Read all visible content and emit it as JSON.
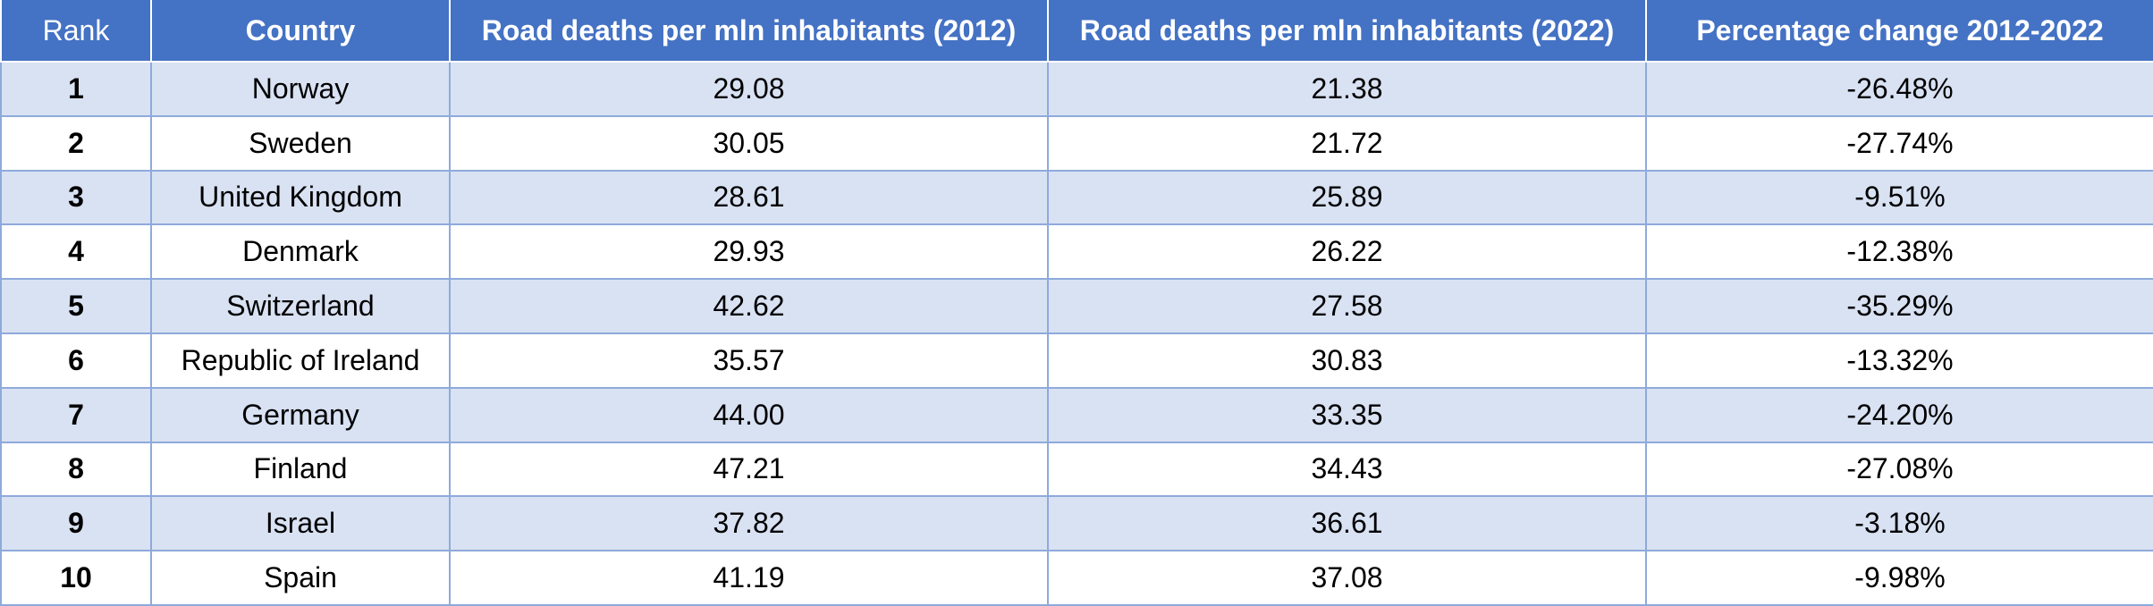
{
  "chart_data": {
    "type": "table",
    "title": "",
    "columns": [
      "Rank",
      "Country",
      "Road deaths per mln inhabitants (2012)",
      "Road deaths per mln inhabitants (2022)",
      "Percentage change 2012-2022"
    ],
    "rows": [
      {
        "rank": "1",
        "country": "Norway",
        "v2012": "29.08",
        "v2022": "21.38",
        "pct": "-26.48%"
      },
      {
        "rank": "2",
        "country": "Sweden",
        "v2012": "30.05",
        "v2022": "21.72",
        "pct": "-27.74%"
      },
      {
        "rank": "3",
        "country": "United Kingdom",
        "v2012": "28.61",
        "v2022": "25.89",
        "pct": "-9.51%"
      },
      {
        "rank": "4",
        "country": "Denmark",
        "v2012": "29.93",
        "v2022": "26.22",
        "pct": "-12.38%"
      },
      {
        "rank": "5",
        "country": "Switzerland",
        "v2012": "42.62",
        "v2022": "27.58",
        "pct": "-35.29%"
      },
      {
        "rank": "6",
        "country": "Republic of Ireland",
        "v2012": "35.57",
        "v2022": "30.83",
        "pct": "-13.32%"
      },
      {
        "rank": "7",
        "country": "Germany",
        "v2012": "44.00",
        "v2022": "33.35",
        "pct": "-24.20%"
      },
      {
        "rank": "8",
        "country": "Finland",
        "v2012": "47.21",
        "v2022": "34.43",
        "pct": "-27.08%"
      },
      {
        "rank": "9",
        "country": "Israel",
        "v2012": "37.82",
        "v2022": "36.61",
        "pct": "-3.18%"
      },
      {
        "rank": "10",
        "country": "Spain",
        "v2012": "41.19",
        "v2022": "37.08",
        "pct": "-9.98%"
      }
    ]
  },
  "colors": {
    "header_bg": "#4472c4",
    "header_text": "#ffffff",
    "band_row": "#d9e2f3",
    "plain_row": "#ffffff",
    "grid_line": "#8eaadb"
  }
}
